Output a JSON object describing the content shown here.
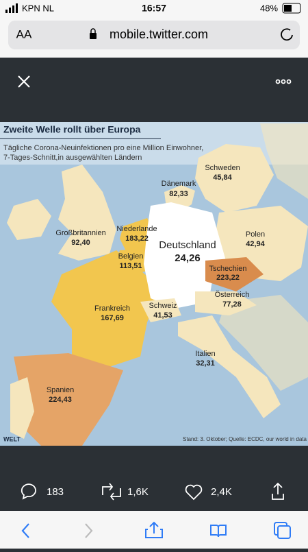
{
  "status_bar": {
    "carrier": "KPN NL",
    "time": "16:57",
    "battery": "48%"
  },
  "browser": {
    "text_size": "AA",
    "url": "mobile.twitter.com"
  },
  "map": {
    "title": "Zweite Welle rollt über Europa",
    "subtitle": [
      "Tägliche Corona-Neuinfektionen pro eine Million Einwohner,",
      "7-Tages-Schnitt,in ausgewählten Ländern"
    ],
    "countries": [
      {
        "name": "Schweden",
        "value": "45,84"
      },
      {
        "name": "Dänemark",
        "value": "82,33"
      },
      {
        "name": "Großbritannien",
        "value": "92,40"
      },
      {
        "name": "Niederlande",
        "value": "183,22"
      },
      {
        "name": "Deutschland",
        "value": "24,26"
      },
      {
        "name": "Polen",
        "value": "42,94"
      },
      {
        "name": "Belgien",
        "value": "113,51"
      },
      {
        "name": "Tschechien",
        "value": "223,22"
      },
      {
        "name": "Österreich",
        "value": "77,28"
      },
      {
        "name": "Frankreich",
        "value": "167,69"
      },
      {
        "name": "Schweiz",
        "value": "41,53"
      },
      {
        "name": "Italien",
        "value": "32,31"
      },
      {
        "name": "Spanien",
        "value": "224,43"
      }
    ],
    "logo": "WELT",
    "source": "Stand: 3. Oktober; Quelle: ECDC, our world in data"
  },
  "tweet_actions": {
    "replies": "183",
    "retweets": "1,6K",
    "likes": "2,4K"
  }
}
